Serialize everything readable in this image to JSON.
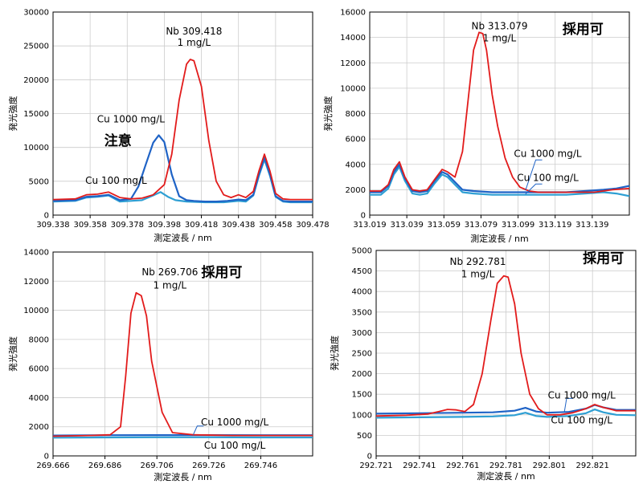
{
  "colors": {
    "nb": "#e21b1b",
    "cu1000": "#1f63c6",
    "cu100": "#2e9fd3",
    "grid": "#cccccc"
  },
  "chart_data": [
    {
      "type": "line",
      "xlabel": "測定波長 / nm",
      "ylabel": "発光強度",
      "xlim": [
        309.338,
        309.478
      ],
      "ylim": [
        0,
        30000
      ],
      "xticks": [
        "309.338",
        "309.358",
        "309.378",
        "309.398",
        "309.418",
        "309.438",
        "309.458",
        "309.478"
      ],
      "yticks": [
        "0",
        "5000",
        "10000",
        "15000",
        "20000",
        "25000",
        "30000"
      ],
      "yticks_values": [
        0,
        5000,
        10000,
        15000,
        20000,
        25000,
        30000
      ],
      "xticks_values": [
        309.338,
        309.358,
        309.378,
        309.398,
        309.418,
        309.438,
        309.458,
        309.478
      ],
      "annotations": [
        {
          "text": "Nb 309.418",
          "x": 309.414,
          "y": 26700
        },
        {
          "text": "1 mg/L",
          "x": 309.414,
          "y": 25000
        },
        {
          "text": "Cu 1000 mg/L",
          "x": 309.38,
          "y": 13700
        },
        {
          "text": "Cu 100 mg/L",
          "x": 309.372,
          "y": 4600
        }
      ],
      "note": {
        "text": "注意",
        "x": 309.373,
        "y": 10300
      },
      "series": [
        {
          "key": "nb",
          "x": [
            309.338,
            309.35,
            309.356,
            309.362,
            309.368,
            309.374,
            309.38,
            309.386,
            309.392,
            309.398,
            309.402,
            309.406,
            309.41,
            309.412,
            309.414,
            309.418,
            309.422,
            309.426,
            309.43,
            309.434,
            309.438,
            309.442,
            309.446,
            309.449,
            309.452,
            309.455,
            309.458,
            309.462,
            309.466,
            309.472,
            309.478
          ],
          "values": [
            2300,
            2400,
            3000,
            3100,
            3400,
            2600,
            2400,
            2500,
            3000,
            4500,
            9000,
            17000,
            22300,
            23000,
            22800,
            19000,
            11000,
            5000,
            3000,
            2600,
            3000,
            2600,
            3500,
            6500,
            9000,
            6500,
            3200,
            2400,
            2300,
            2300,
            2300
          ]
        },
        {
          "key": "cu1000",
          "x": [
            309.338,
            309.35,
            309.356,
            309.362,
            309.368,
            309.374,
            309.38,
            309.384,
            309.388,
            309.392,
            309.395,
            309.398,
            309.402,
            309.406,
            309.41,
            309.414,
            309.42,
            309.426,
            309.432,
            309.438,
            309.442,
            309.446,
            309.449,
            309.452,
            309.455,
            309.458,
            309.462,
            309.466,
            309.472,
            309.478
          ],
          "values": [
            2100,
            2200,
            2700,
            2800,
            3000,
            2200,
            2400,
            4200,
            7500,
            10700,
            11800,
            10800,
            6000,
            2800,
            2200,
            2100,
            2000,
            2000,
            2100,
            2300,
            2200,
            3000,
            6000,
            8500,
            6000,
            2800,
            2100,
            2000,
            2000,
            2000
          ]
        },
        {
          "key": "cu100",
          "x": [
            309.338,
            309.35,
            309.356,
            309.362,
            309.368,
            309.374,
            309.38,
            309.386,
            309.392,
            309.396,
            309.4,
            309.404,
            309.41,
            309.42,
            309.43,
            309.438,
            309.442,
            309.446,
            309.449,
            309.452,
            309.455,
            309.458,
            309.462,
            309.466,
            309.472,
            309.478
          ],
          "values": [
            2000,
            2100,
            2600,
            2700,
            2900,
            2000,
            2100,
            2200,
            2900,
            3400,
            2700,
            2200,
            2000,
            1900,
            1900,
            2100,
            2000,
            2900,
            5800,
            8200,
            5800,
            2700,
            2000,
            1900,
            1900,
            1900
          ]
        }
      ],
      "callouts": []
    },
    {
      "type": "line",
      "xlabel": "測定波長 / nm",
      "ylabel": "発光強度",
      "xlim": [
        313.019,
        313.159
      ],
      "ylim": [
        0,
        16000
      ],
      "xticks": [
        "313.019",
        "313.039",
        "313.059",
        "313.079",
        "313.099",
        "313.119",
        "313.139"
      ],
      "yticks": [
        "0",
        "2000",
        "4000",
        "6000",
        "8000",
        "10000",
        "12000",
        "14000",
        "16000"
      ],
      "yticks_values": [
        0,
        2000,
        4000,
        6000,
        8000,
        10000,
        12000,
        14000,
        16000
      ],
      "xticks_values": [
        313.019,
        313.039,
        313.059,
        313.079,
        313.099,
        313.119,
        313.139
      ],
      "annotations": [
        {
          "text": "Nb 313.079",
          "x": 313.089,
          "y": 14650
        },
        {
          "text": "1 mg/L",
          "x": 313.089,
          "y": 13700
        },
        {
          "text": "Cu 1000 mg/L",
          "x": 313.115,
          "y": 4600
        },
        {
          "text": "Cu 100 mg/L",
          "x": 313.115,
          "y": 2700
        }
      ],
      "note": {
        "text": "採用可",
        "x": 313.134,
        "y": 14300
      },
      "series": [
        {
          "key": "nb",
          "x": [
            313.019,
            313.025,
            313.029,
            313.032,
            313.035,
            313.038,
            313.042,
            313.046,
            313.05,
            313.054,
            313.058,
            313.061,
            313.065,
            313.069,
            313.072,
            313.075,
            313.078,
            313.08,
            313.082,
            313.085,
            313.088,
            313.092,
            313.096,
            313.1,
            313.105,
            313.11,
            313.12,
            313.13,
            313.14,
            313.15,
            313.159
          ],
          "values": [
            1900,
            1900,
            2400,
            3600,
            4200,
            3000,
            2000,
            1900,
            2000,
            2800,
            3600,
            3400,
            3000,
            5000,
            9000,
            13000,
            14400,
            14300,
            13000,
            9500,
            7000,
            4500,
            3000,
            2200,
            1900,
            1800,
            1800,
            1800,
            1800,
            2000,
            2100
          ]
        },
        {
          "key": "cu1000",
          "x": [
            313.019,
            313.025,
            313.029,
            313.032,
            313.035,
            313.038,
            313.042,
            313.046,
            313.05,
            313.054,
            313.058,
            313.061,
            313.065,
            313.069,
            313.075,
            313.085,
            313.095,
            313.105,
            313.115,
            313.125,
            313.135,
            313.145,
            313.152,
            313.159
          ],
          "values": [
            1800,
            1800,
            2300,
            3400,
            4000,
            2900,
            1900,
            1800,
            1900,
            2700,
            3400,
            3200,
            2600,
            2000,
            1900,
            1800,
            1800,
            1800,
            1800,
            1800,
            1900,
            2000,
            2100,
            2300
          ]
        },
        {
          "key": "cu100",
          "x": [
            313.019,
            313.025,
            313.029,
            313.032,
            313.035,
            313.038,
            313.042,
            313.046,
            313.05,
            313.054,
            313.058,
            313.061,
            313.065,
            313.069,
            313.075,
            313.085,
            313.095,
            313.105,
            313.115,
            313.125,
            313.135,
            313.145,
            313.152,
            313.159
          ],
          "values": [
            1600,
            1600,
            2100,
            3200,
            3800,
            2700,
            1700,
            1600,
            1700,
            2500,
            3200,
            3000,
            2400,
            1800,
            1700,
            1600,
            1600,
            1600,
            1600,
            1600,
            1700,
            1800,
            1700,
            1500
          ]
        }
      ],
      "callouts": [
        {
          "from": [
            313.112,
            4350
          ],
          "to": [
            313.103,
            1950
          ]
        },
        {
          "from": [
            313.112,
            2450
          ],
          "to": [
            313.103,
            1650
          ]
        }
      ]
    },
    {
      "type": "line",
      "xlabel": "測定波長 / nm",
      "ylabel": "発光強度",
      "xlim": [
        269.666,
        269.766
      ],
      "ylim": [
        0,
        14000
      ],
      "xticks": [
        "269.666",
        "269.686",
        "269.706",
        "269.726",
        "269.746"
      ],
      "yticks": [
        "0",
        "2000",
        "4000",
        "6000",
        "8000",
        "10000",
        "12000",
        "14000"
      ],
      "yticks_values": [
        0,
        2000,
        4000,
        6000,
        8000,
        10000,
        12000,
        14000
      ],
      "xticks_values": [
        269.666,
        269.686,
        269.706,
        269.726,
        269.746
      ],
      "annotations": [
        {
          "text": "Nb 269.706",
          "x": 269.711,
          "y": 12400
        },
        {
          "text": "1 mg/L",
          "x": 269.711,
          "y": 11500
        },
        {
          "text": "Cu 1000 mg/L",
          "x": 269.736,
          "y": 2100
        },
        {
          "text": "Cu 100 mg/L",
          "x": 269.736,
          "y": 500
        }
      ],
      "note": {
        "text": "採用可",
        "x": 269.731,
        "y": 12300
      },
      "series": [
        {
          "key": "nb",
          "x": [
            269.666,
            269.68,
            269.688,
            269.692,
            269.694,
            269.696,
            269.698,
            269.7,
            269.702,
            269.704,
            269.708,
            269.712,
            269.72,
            269.735,
            269.75,
            269.766
          ],
          "values": [
            1350,
            1400,
            1450,
            2000,
            5500,
            9800,
            11200,
            11000,
            9600,
            6500,
            3000,
            1600,
            1450,
            1400,
            1400,
            1400
          ]
        },
        {
          "key": "cu1000",
          "x": [
            269.666,
            269.686,
            269.706,
            269.726,
            269.746,
            269.766
          ],
          "values": [
            1400,
            1420,
            1430,
            1430,
            1420,
            1420
          ]
        },
        {
          "key": "cu100",
          "x": [
            269.666,
            269.686,
            269.706,
            269.726,
            269.746,
            269.766
          ],
          "values": [
            1250,
            1270,
            1280,
            1280,
            1270,
            1270
          ]
        }
      ],
      "callouts": [
        {
          "from": [
            269.724,
            2050
          ],
          "to": [
            269.72,
            1450
          ]
        }
      ]
    },
    {
      "type": "line",
      "xlabel": "測定波長 / nm",
      "ylabel": "発光強度",
      "xlim": [
        292.721,
        292.841
      ],
      "ylim": [
        0,
        5000
      ],
      "xticks": [
        "292.721",
        "292.741",
        "292.761",
        "292.781",
        "292.801",
        "292.821"
      ],
      "yticks": [
        "0",
        "500",
        "1000",
        "1500",
        "2000",
        "2500",
        "3000",
        "3500",
        "4000",
        "4500",
        "5000"
      ],
      "yticks_values": [
        0,
        500,
        1000,
        1500,
        2000,
        2500,
        3000,
        3500,
        4000,
        4500,
        5000
      ],
      "xticks_values": [
        292.721,
        292.741,
        292.761,
        292.781,
        292.801,
        292.821
      ],
      "annotations": [
        {
          "text": "Nb 292.781",
          "x": 292.768,
          "y": 4650
        },
        {
          "text": "1 mg/L",
          "x": 292.768,
          "y": 4350
        },
        {
          "text": "Cu 1000 mg/L",
          "x": 292.816,
          "y": 1400
        },
        {
          "text": "Cu 100 mg/L",
          "x": 292.816,
          "y": 790
        }
      ],
      "note": {
        "text": "採用可",
        "x": 292.826,
        "y": 4700
      },
      "series": [
        {
          "key": "nb",
          "x": [
            292.721,
            292.735,
            292.745,
            292.75,
            292.754,
            292.758,
            292.762,
            292.766,
            292.77,
            292.774,
            292.777,
            292.78,
            292.782,
            292.785,
            292.788,
            292.792,
            292.796,
            292.8,
            292.806,
            292.812,
            292.818,
            292.822,
            292.826,
            292.832,
            292.841
          ],
          "values": [
            970,
            990,
            1020,
            1080,
            1130,
            1120,
            1080,
            1250,
            2000,
            3300,
            4200,
            4380,
            4350,
            3700,
            2500,
            1500,
            1150,
            1000,
            1000,
            1050,
            1150,
            1250,
            1180,
            1100,
            1100
          ]
        },
        {
          "key": "cu1000",
          "x": [
            292.721,
            292.741,
            292.761,
            292.775,
            292.785,
            292.79,
            292.795,
            292.8,
            292.81,
            292.818,
            292.822,
            292.826,
            292.832,
            292.841
          ],
          "values": [
            1030,
            1040,
            1050,
            1060,
            1100,
            1170,
            1080,
            1050,
            1070,
            1150,
            1240,
            1180,
            1120,
            1120
          ]
        },
        {
          "key": "cu100",
          "x": [
            292.721,
            292.741,
            292.761,
            292.775,
            292.785,
            292.79,
            292.795,
            292.8,
            292.81,
            292.818,
            292.822,
            292.826,
            292.832,
            292.841
          ],
          "values": [
            930,
            940,
            950,
            960,
            990,
            1050,
            970,
            950,
            970,
            1040,
            1130,
            1060,
            1000,
            990
          ]
        }
      ],
      "callouts": [
        {
          "from": [
            292.812,
            1400
          ],
          "to": [
            292.808,
            1070
          ]
        }
      ]
    }
  ]
}
